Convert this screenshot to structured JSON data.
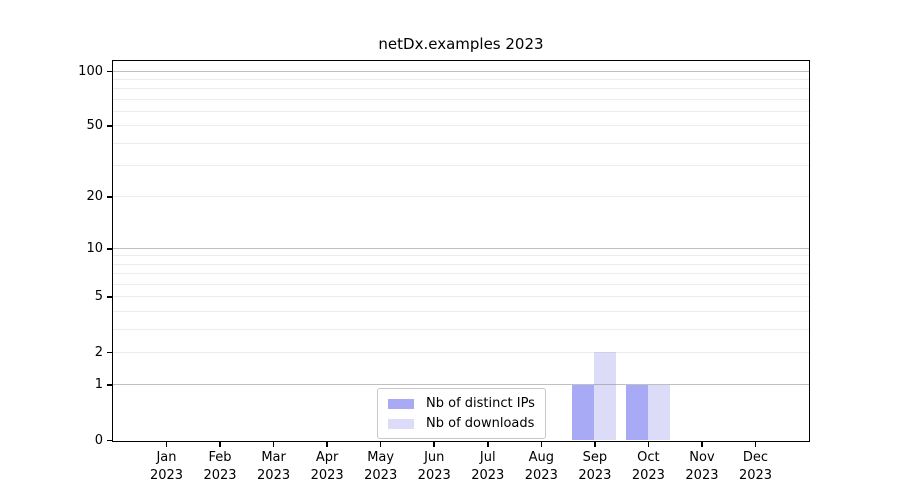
{
  "figure": {
    "background": "#ffffff"
  },
  "chart_data": {
    "type": "bar",
    "title": "netDx.examples 2023",
    "x_tick_months": [
      "Jan",
      "Feb",
      "Mar",
      "Apr",
      "May",
      "Jun",
      "Jul",
      "Aug",
      "Sep",
      "Oct",
      "Nov",
      "Dec"
    ],
    "x_tick_year": "2023",
    "series": [
      {
        "name": "Nb of distinct IPs",
        "color": "#a9aaf6",
        "values": [
          0,
          0,
          0,
          0,
          0,
          0,
          0,
          0,
          1,
          1,
          0,
          0
        ]
      },
      {
        "name": "Nb of downloads",
        "color": "#dcdcf8",
        "values": [
          0,
          0,
          0,
          0,
          0,
          0,
          0,
          0,
          2,
          1,
          0,
          0
        ]
      }
    ],
    "y_axis": {
      "scale": "log1p",
      "tick_values": [
        0,
        1,
        2,
        5,
        10,
        20,
        50,
        100
      ],
      "major_gridline_values": [
        1,
        10,
        100
      ],
      "minor_gridline_values": [
        2,
        3,
        4,
        5,
        6,
        7,
        8,
        9,
        20,
        30,
        40,
        50,
        60,
        70,
        80,
        90
      ],
      "range": [
        0,
        113
      ]
    },
    "legend": {
      "position": "lower-center-inside",
      "border_color": "#c8c8c8"
    },
    "grid": true,
    "spine_color": "#000000"
  }
}
